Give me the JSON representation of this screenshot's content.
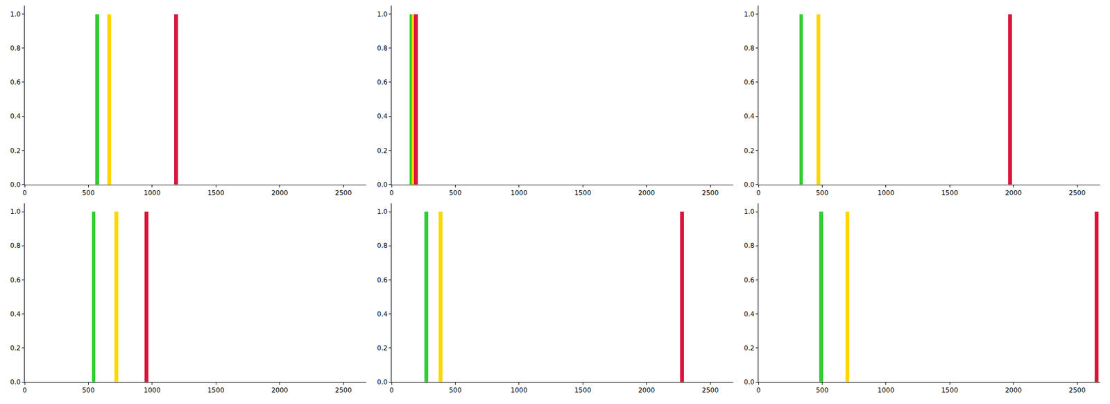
{
  "chart_data": [
    {
      "type": "bar",
      "x": [
        569,
        664,
        1189
      ],
      "values": [
        1,
        1,
        1
      ],
      "colors": [
        "#32cd32",
        "#ffd700",
        "#dc143c"
      ],
      "xlim": [
        0,
        2680
      ],
      "ylim": [
        0,
        1.05
      ],
      "xticks": [
        0,
        500,
        1000,
        1500,
        2000,
        2500
      ],
      "yticks": [
        {
          "value": 0,
          "label": "0.0"
        },
        {
          "value": 0.2,
          "label": "0.2"
        },
        {
          "value": 0.4,
          "label": "0.4"
        },
        {
          "value": 0.6,
          "label": "0.6"
        },
        {
          "value": 0.8,
          "label": "0.8"
        },
        {
          "value": 1,
          "label": "1.0"
        }
      ],
      "grid": false
    },
    {
      "type": "bar",
      "x": [
        155,
        175,
        190
      ],
      "values": [
        1,
        1,
        1
      ],
      "colors": [
        "#32cd32",
        "#ffd700",
        "#dc143c"
      ],
      "xlim": [
        0,
        2680
      ],
      "ylim": [
        0,
        1.05
      ],
      "xticks": [
        0,
        500,
        1000,
        1500,
        2000,
        2500
      ],
      "yticks": [
        {
          "value": 0,
          "label": "0.0"
        },
        {
          "value": 0.2,
          "label": "0.2"
        },
        {
          "value": 0.4,
          "label": "0.4"
        },
        {
          "value": 0.6,
          "label": "0.6"
        },
        {
          "value": 0.8,
          "label": "0.8"
        },
        {
          "value": 1,
          "label": "1.0"
        }
      ],
      "grid": false
    },
    {
      "type": "bar",
      "x": [
        335,
        469,
        1972
      ],
      "values": [
        1,
        1,
        1
      ],
      "colors": [
        "#32cd32",
        "#ffd700",
        "#dc143c"
      ],
      "xlim": [
        0,
        2680
      ],
      "ylim": [
        0,
        1.05
      ],
      "xticks": [
        0,
        500,
        1000,
        1500,
        2000,
        2500
      ],
      "yticks": [
        {
          "value": 0,
          "label": "0.0"
        },
        {
          "value": 0.2,
          "label": "0.2"
        },
        {
          "value": 0.4,
          "label": "0.4"
        },
        {
          "value": 0.6,
          "label": "0.6"
        },
        {
          "value": 0.8,
          "label": "0.8"
        },
        {
          "value": 1,
          "label": "1.0"
        }
      ],
      "grid": false
    },
    {
      "type": "bar",
      "x": [
        541,
        720,
        954
      ],
      "values": [
        1,
        1,
        1
      ],
      "colors": [
        "#32cd32",
        "#ffd700",
        "#dc143c"
      ],
      "xlim": [
        0,
        2680
      ],
      "ylim": [
        0,
        1.05
      ],
      "xticks": [
        0,
        500,
        1000,
        1500,
        2000,
        2500
      ],
      "yticks": [
        {
          "value": 0,
          "label": "0.0"
        },
        {
          "value": 0.2,
          "label": "0.2"
        },
        {
          "value": 0.4,
          "label": "0.4"
        },
        {
          "value": 0.6,
          "label": "0.6"
        },
        {
          "value": 0.8,
          "label": "0.8"
        },
        {
          "value": 1,
          "label": "1.0"
        }
      ],
      "grid": false
    },
    {
      "type": "bar",
      "x": [
        273,
        385,
        2277
      ],
      "values": [
        1,
        1,
        1
      ],
      "colors": [
        "#32cd32",
        "#ffd700",
        "#dc143c"
      ],
      "xlim": [
        0,
        2680
      ],
      "ylim": [
        0,
        1.05
      ],
      "xticks": [
        0,
        500,
        1000,
        1500,
        2000,
        2500
      ],
      "yticks": [
        {
          "value": 0,
          "label": "0.0"
        },
        {
          "value": 0.2,
          "label": "0.2"
        },
        {
          "value": 0.4,
          "label": "0.4"
        },
        {
          "value": 0.6,
          "label": "0.6"
        },
        {
          "value": 0.8,
          "label": "0.8"
        },
        {
          "value": 1,
          "label": "1.0"
        }
      ],
      "grid": false
    },
    {
      "type": "bar",
      "x": [
        491,
        698,
        2651
      ],
      "values": [
        1,
        1,
        1
      ],
      "colors": [
        "#32cd32",
        "#ffd700",
        "#dc143c"
      ],
      "xlim": [
        0,
        2680
      ],
      "ylim": [
        0,
        1.05
      ],
      "xticks": [
        0,
        500,
        1000,
        1500,
        2000,
        2500
      ],
      "yticks": [
        {
          "value": 0,
          "label": "0.0"
        },
        {
          "value": 0.2,
          "label": "0.2"
        },
        {
          "value": 0.4,
          "label": "0.4"
        },
        {
          "value": 0.6,
          "label": "0.6"
        },
        {
          "value": 0.8,
          "label": "0.8"
        },
        {
          "value": 1,
          "label": "1.0"
        }
      ],
      "grid": false
    }
  ]
}
